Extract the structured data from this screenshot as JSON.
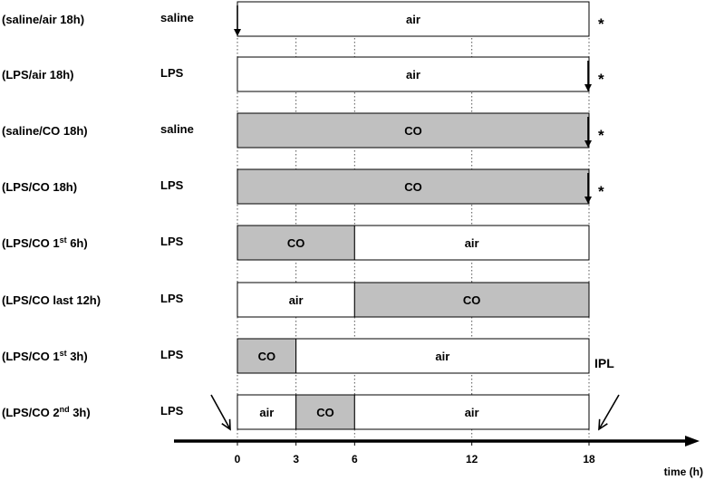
{
  "rows": [
    {
      "condition": {
        "text": "(saline/air 18h)"
      },
      "treatment": "saline",
      "segments": [
        {
          "label": "air",
          "from": 0,
          "to": 18,
          "type": "air"
        }
      ],
      "arrow_at": 0,
      "asterisk": "*"
    },
    {
      "condition": {
        "text": "(LPS/air 18h)"
      },
      "treatment": "LPS",
      "segments": [
        {
          "label": "air",
          "from": 0,
          "to": 18,
          "type": "air"
        }
      ],
      "arrow_at": 18,
      "asterisk": "*"
    },
    {
      "condition": {
        "text": "(saline/CO 18h)"
      },
      "treatment": "saline",
      "segments": [
        {
          "label": "CO",
          "from": 0,
          "to": 18,
          "type": "co"
        }
      ],
      "arrow_at": 18,
      "asterisk": "*"
    },
    {
      "condition": {
        "text": "(LPS/CO 18h)"
      },
      "treatment": "LPS",
      "segments": [
        {
          "label": "CO",
          "from": 0,
          "to": 18,
          "type": "co"
        }
      ],
      "arrow_at": 18,
      "asterisk": "*"
    },
    {
      "condition": {
        "text": "(LPS/CO 1",
        "sup": "st",
        "tail": " 6h)"
      },
      "treatment": "LPS",
      "segments": [
        {
          "label": "CO",
          "from": 0,
          "to": 6,
          "type": "co"
        },
        {
          "label": "air",
          "from": 6,
          "to": 18,
          "type": "air"
        }
      ]
    },
    {
      "condition": {
        "text": "(LPS/CO last 12h)"
      },
      "treatment": "LPS",
      "segments": [
        {
          "label": "air",
          "from": 0,
          "to": 6,
          "type": "air"
        },
        {
          "label": "CO",
          "from": 6,
          "to": 18,
          "type": "co"
        }
      ]
    },
    {
      "condition": {
        "text": "(LPS/CO 1",
        "sup": "st",
        "tail": " 3h)"
      },
      "treatment": "LPS",
      "segments": [
        {
          "label": "CO",
          "from": 0,
          "to": 3,
          "type": "co"
        },
        {
          "label": "air",
          "from": 3,
          "to": 18,
          "type": "air"
        }
      ]
    },
    {
      "condition": {
        "text": "(LPS/CO 2",
        "sup": "nd",
        "tail": " 3h)"
      },
      "treatment": "LPS",
      "segments": [
        {
          "label": "air",
          "from": 0,
          "to": 3,
          "type": "air"
        },
        {
          "label": "CO",
          "from": 3,
          "to": 6,
          "type": "co"
        },
        {
          "label": "air",
          "from": 6,
          "to": 18,
          "type": "air"
        }
      ]
    }
  ],
  "axis": {
    "ticks": [
      0,
      3,
      6,
      12,
      18
    ],
    "label": "time (h)"
  },
  "ipl_label": "IPL",
  "colors": {
    "co_fill": "#c0c0c0",
    "air_fill": "#ffffff",
    "stroke": "#000000"
  }
}
